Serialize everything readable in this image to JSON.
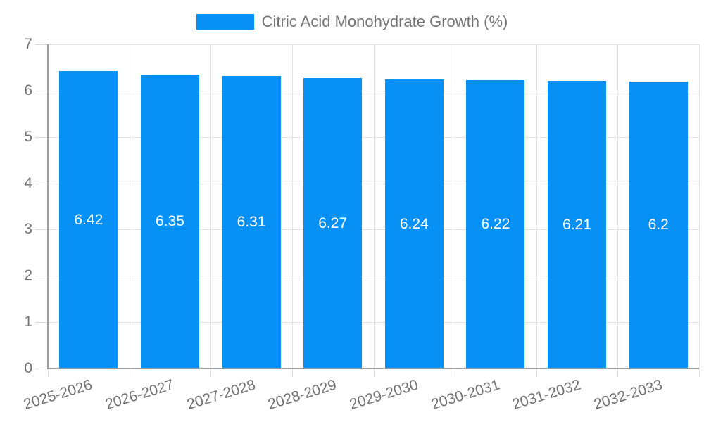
{
  "chart_data": {
    "type": "bar",
    "title": "Citric Acid Monohydrate Growth (%)",
    "categories": [
      "2025-2026",
      "2026-2027",
      "2027-2028",
      "2028-2029",
      "2029-2030",
      "2030-2031",
      "2031-2032",
      "2032-2033"
    ],
    "values": [
      6.42,
      6.35,
      6.31,
      6.27,
      6.24,
      6.22,
      6.21,
      6.2
    ],
    "bar_labels": [
      "6.42",
      "6.35",
      "6.31",
      "6.27",
      "6.24",
      "6.22",
      "6.21",
      "6.2"
    ],
    "xlabel": "",
    "ylabel": "",
    "ylim": [
      0,
      7
    ],
    "yticks": [
      0,
      1,
      2,
      3,
      4,
      5,
      6,
      7
    ],
    "grid": true,
    "legend_position": "top",
    "colors": {
      "bar": "#0791f5",
      "bar_label_text": "#ffffff",
      "axis_text": "#737373",
      "legend_text": "#757575",
      "gridline": "#e3e3e3",
      "tick": "#d9d9d9",
      "axis_line": "#9e9e9e",
      "background": "#ffffff"
    }
  }
}
